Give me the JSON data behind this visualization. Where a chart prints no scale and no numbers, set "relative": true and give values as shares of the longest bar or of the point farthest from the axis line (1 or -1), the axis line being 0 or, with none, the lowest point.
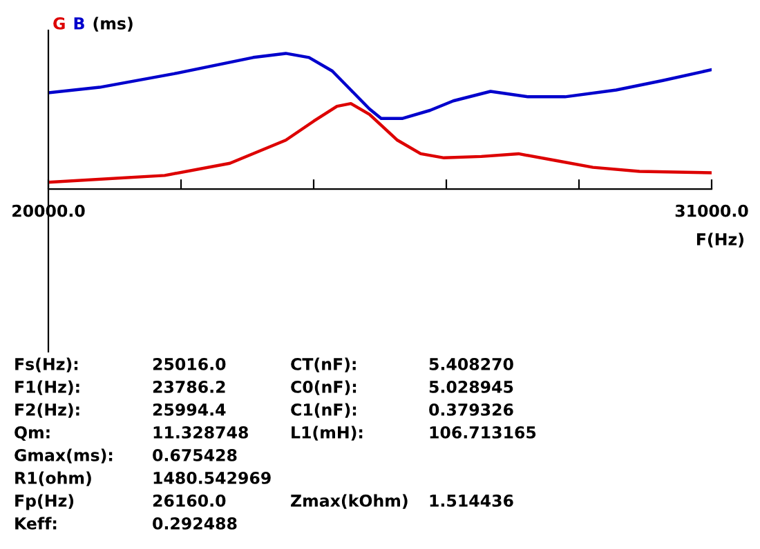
{
  "chart_data": {
    "type": "line",
    "relative": true,
    "ylabel": "(ms)",
    "xlabel": "F(Hz)",
    "xlim": [
      20000,
      31000
    ],
    "xticks": [
      {
        "value": 20000,
        "label": "20000.0"
      },
      {
        "value": 22200,
        "label": null
      },
      {
        "value": 24400,
        "label": null
      },
      {
        "value": 26600,
        "label": null
      },
      {
        "value": 28800,
        "label": null
      },
      {
        "value": 31000,
        "label": "31000.0"
      }
    ],
    "grid": false,
    "legend": false,
    "marker": "none",
    "line_style": "solid",
    "series": [
      {
        "name": "G",
        "color": "#dd0000",
        "x": [
          20000,
          21930,
          23010,
          23937,
          24400,
          24786,
          25017,
          25326,
          25789,
          26175,
          26561,
          27179,
          27797,
          28414,
          29031,
          29803,
          31000
        ],
        "values": [
          0.05,
          0.1,
          0.19,
          0.36,
          0.5,
          0.61,
          0.63,
          0.55,
          0.36,
          0.26,
          0.23,
          0.24,
          0.26,
          0.21,
          0.16,
          0.13,
          0.12
        ]
      },
      {
        "name": "B",
        "color": "#0000cc",
        "x": [
          20000,
          20849,
          22084,
          23397,
          23937,
          24323,
          24709,
          25017,
          25326,
          25519,
          25866,
          26330,
          26716,
          27333,
          27951,
          28568,
          29417,
          30189,
          31000
        ],
        "values": [
          0.71,
          0.75,
          0.85,
          0.97,
          1.0,
          0.97,
          0.87,
          0.73,
          0.59,
          0.52,
          0.52,
          0.58,
          0.65,
          0.72,
          0.68,
          0.68,
          0.73,
          0.8,
          0.88
        ]
      }
    ],
    "annotations": [
      "Fs(Hz):",
      "25016.0",
      "CT(nF):",
      "5.408270",
      "F1(Hz):",
      "23786.2",
      "C0(nF):",
      "5.028945",
      "F2(Hz):",
      "25994.4",
      "C1(nF):",
      "0.379326",
      "Qm:",
      "11.328748",
      "L1(mH):",
      "106.713165",
      "Gmax(ms):",
      "0.675428",
      "R1(ohm)",
      "1480.542969",
      "Fp(Hz)",
      "26160.0",
      "Zmax(kOhm)",
      "1.514436",
      "Keff:",
      "0.292488"
    ]
  }
}
